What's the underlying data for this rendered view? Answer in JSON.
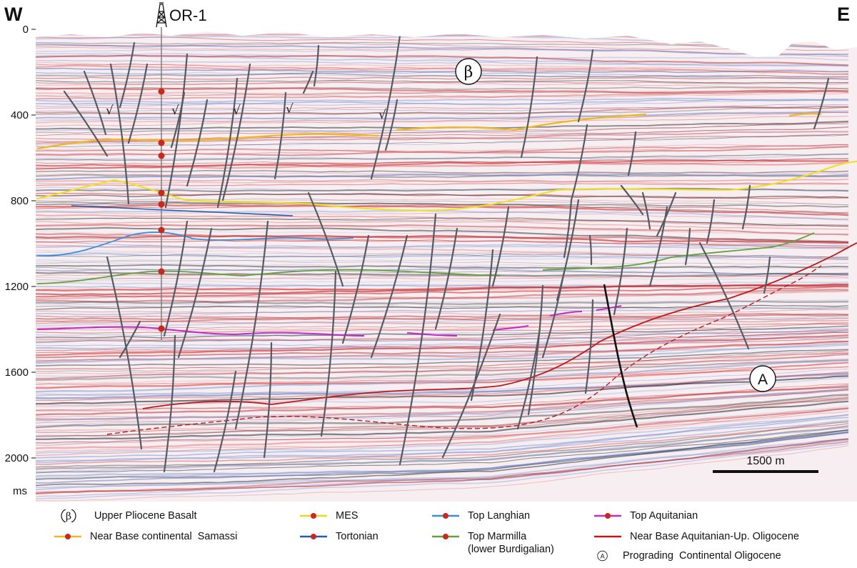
{
  "figure": {
    "west_label": "W",
    "east_label": "E",
    "well_name": "OR-1",
    "axis_unit": "ms",
    "y_ticks": [
      "0",
      "400",
      "800",
      "1200",
      "1600",
      "2000"
    ],
    "basalt_marker": "β",
    "prograding_marker": "A",
    "normal_fault_symbol": "√",
    "scale_bar_label": "1500 m"
  },
  "legend": {
    "items": [
      {
        "label": "Upper Pliocene Basalt",
        "symbol": "circle",
        "symbol_text": "β"
      },
      {
        "label": "MES",
        "symbol": "line-dot",
        "color": "#f2d41a"
      },
      {
        "label": "Top Langhian",
        "symbol": "line-dot",
        "color": "#3b8fd9"
      },
      {
        "label": "Top Aquitanian",
        "symbol": "line-dot",
        "color": "#c42ac9"
      },
      {
        "label": "Near Base continental  Samassi",
        "symbol": "line-dot",
        "color": "#f0b81e"
      },
      {
        "label": "Tortonian",
        "symbol": "line-dot",
        "color": "#1f5fae"
      },
      {
        "label": "Top Marmilla",
        "label2": "(lower Burdigalian)",
        "symbol": "line-dot",
        "color": "#62a23a"
      },
      {
        "label": "Near Base Aquitanian-Up. Oligocene",
        "symbol": "line",
        "color": "#c01818"
      },
      {
        "label": "Prograding  Continental Oligocene",
        "symbol": "circle",
        "symbol_text": "A"
      }
    ],
    "dot_color": "#c8281e"
  }
}
